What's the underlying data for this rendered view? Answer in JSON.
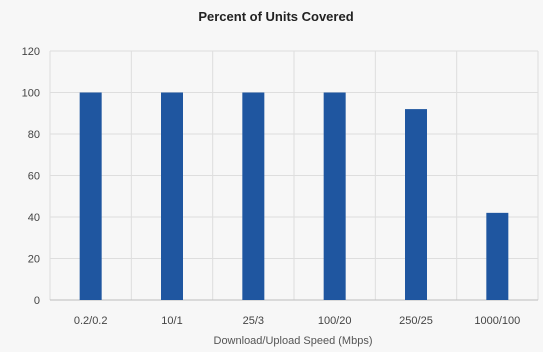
{
  "chart_data": {
    "type": "bar",
    "title": "Percent of Units Covered",
    "xlabel": "Download/Upload Speed (Mbps)",
    "ylabel": "",
    "categories": [
      "0.2/0.2",
      "10/1",
      "25/3",
      "100/20",
      "250/25",
      "1000/100"
    ],
    "values": [
      100,
      100,
      100,
      100,
      92,
      42
    ],
    "ylim": [
      0,
      120
    ],
    "yticks": [
      0,
      20,
      40,
      60,
      80,
      100,
      120
    ],
    "grid": true,
    "bar_color": "#1f56a0",
    "grid_color": "#dedede"
  }
}
